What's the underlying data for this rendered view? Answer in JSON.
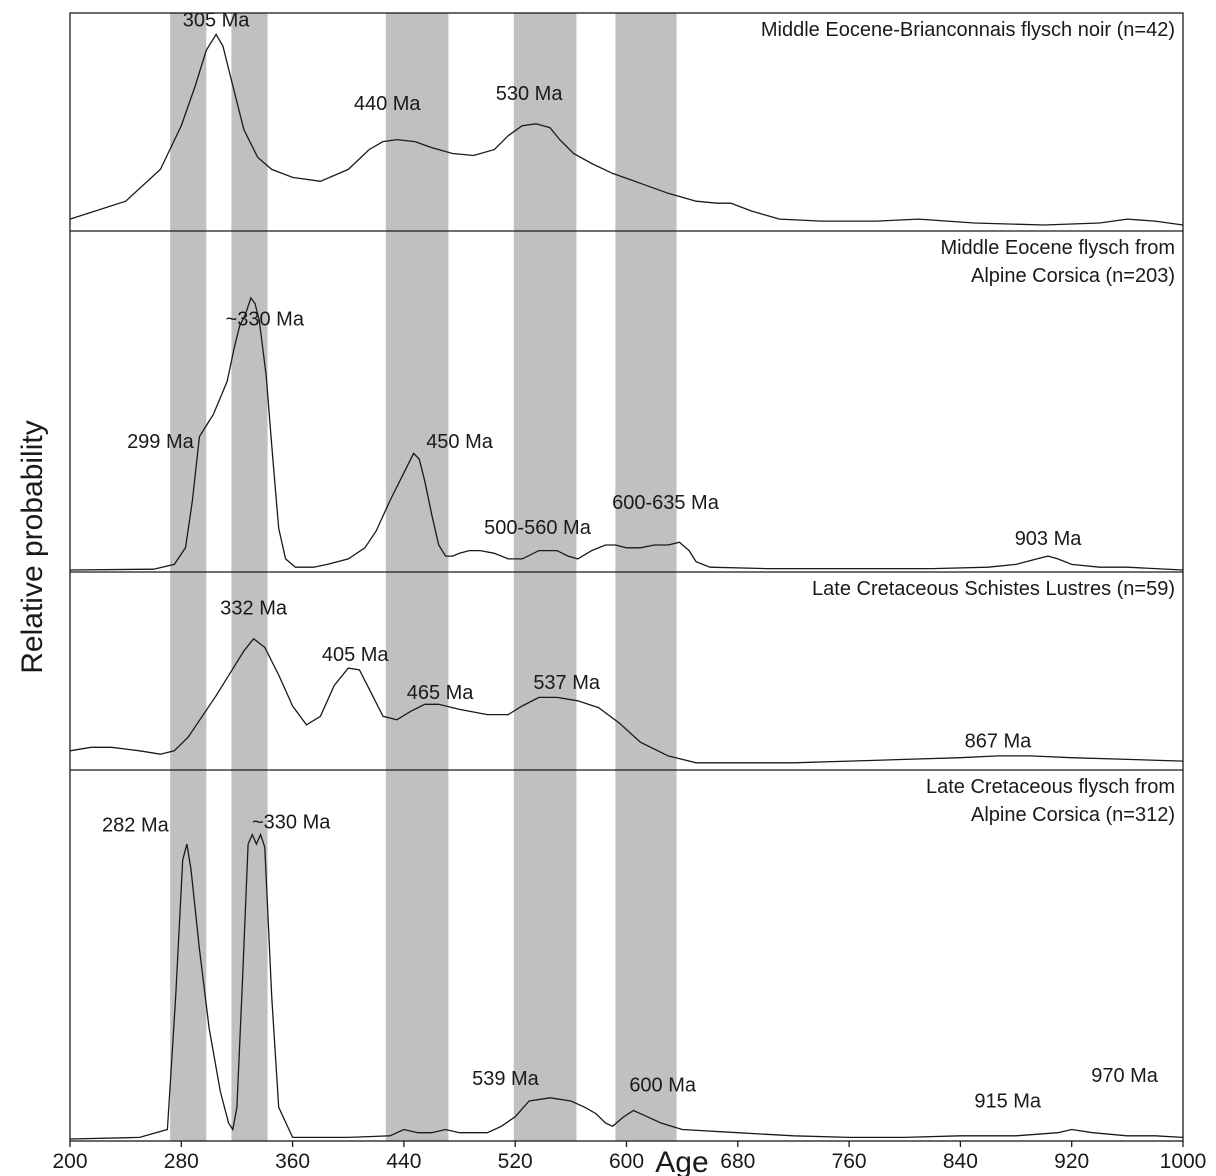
{
  "colors": {
    "band": "#c0c0c0",
    "line": "#1a1a1a",
    "background": "#ffffff"
  },
  "chart_data": {
    "type": "line",
    "xlabel": "Age",
    "ylabel": "Relative probability",
    "xlim": [
      200,
      1000
    ],
    "xticks": [
      "200",
      "280",
      "360",
      "440",
      "520",
      "600",
      "680",
      "760",
      "840",
      "920",
      "1000"
    ],
    "grid": false,
    "bands": [
      [
        272,
        298
      ],
      [
        316,
        342
      ],
      [
        427,
        472
      ],
      [
        519,
        564
      ],
      [
        592,
        636
      ]
    ],
    "panels": [
      {
        "title_lines": [
          "Middle Eocene-Brianconnais flysch noir (n=42)"
        ],
        "x": [
          200,
          240,
          265,
          280,
          290,
          298,
          305,
          310,
          316,
          325,
          335,
          345,
          360,
          380,
          400,
          415,
          425,
          435,
          448,
          460,
          475,
          490,
          505,
          515,
          525,
          535,
          545,
          552,
          562,
          575,
          590,
          610,
          630,
          650,
          665,
          675,
          690,
          710,
          740,
          780,
          810,
          850,
          900,
          940,
          960,
          980,
          1000
        ],
        "y": [
          0.05,
          0.14,
          0.3,
          0.52,
          0.72,
          0.9,
          0.98,
          0.92,
          0.75,
          0.5,
          0.36,
          0.3,
          0.26,
          0.24,
          0.3,
          0.4,
          0.44,
          0.45,
          0.44,
          0.41,
          0.38,
          0.37,
          0.4,
          0.47,
          0.52,
          0.53,
          0.51,
          0.45,
          0.38,
          0.33,
          0.28,
          0.23,
          0.18,
          0.14,
          0.13,
          0.13,
          0.09,
          0.05,
          0.04,
          0.04,
          0.05,
          0.03,
          0.02,
          0.03,
          0.05,
          0.04,
          0.02
        ],
        "peaks": [
          {
            "text": "305 Ma",
            "x": 305,
            "y": 1.02
          },
          {
            "text": "440 Ma",
            "x": 428,
            "y": 0.6
          },
          {
            "text": "530 Ma",
            "x": 530,
            "y": 0.65
          }
        ]
      },
      {
        "title_lines": [
          "Middle Eocene flysch from",
          "Alpine Corsica  (n=203)"
        ],
        "x": [
          200,
          260,
          275,
          283,
          288,
          293,
          298,
          303,
          308,
          313,
          318,
          322,
          326,
          330,
          333,
          336,
          341,
          345,
          350,
          355,
          362,
          375,
          385,
          400,
          412,
          420,
          430,
          440,
          447,
          451,
          455,
          460,
          465,
          470,
          475,
          480,
          487,
          495,
          505,
          515,
          525,
          537,
          550,
          558,
          565,
          575,
          585,
          592,
          600,
          610,
          620,
          630,
          638,
          645,
          650,
          660,
          700,
          760,
          820,
          860,
          880,
          895,
          903,
          910,
          920,
          940,
          960,
          980,
          1000
        ],
        "y": [
          0,
          0.003,
          0.02,
          0.08,
          0.25,
          0.48,
          0.52,
          0.56,
          0.62,
          0.68,
          0.8,
          0.88,
          0.92,
          0.98,
          0.96,
          0.9,
          0.7,
          0.45,
          0.15,
          0.04,
          0.01,
          0.01,
          0.02,
          0.04,
          0.08,
          0.14,
          0.25,
          0.35,
          0.42,
          0.4,
          0.32,
          0.2,
          0.09,
          0.05,
          0.05,
          0.06,
          0.07,
          0.07,
          0.06,
          0.04,
          0.04,
          0.07,
          0.07,
          0.05,
          0.04,
          0.07,
          0.09,
          0.09,
          0.08,
          0.08,
          0.09,
          0.09,
          0.1,
          0.07,
          0.03,
          0.01,
          0.005,
          0.005,
          0.005,
          0.01,
          0.02,
          0.04,
          0.05,
          0.04,
          0.02,
          0.01,
          0.01,
          0.005,
          0
        ],
        "peaks": [
          {
            "text": "~330 Ma",
            "x": 340,
            "y": 0.88
          },
          {
            "text": "299 Ma",
            "x": 265,
            "y": 0.44
          },
          {
            "text": "450 Ma",
            "x": 480,
            "y": 0.44
          },
          {
            "text": "500-560 Ma",
            "x": 536,
            "y": 0.13
          },
          {
            "text": "600-635 Ma",
            "x": 628,
            "y": 0.22
          },
          {
            "text": "903 Ma",
            "x": 903,
            "y": 0.09
          }
        ]
      },
      {
        "title_lines": [
          "Late Cretaceous Schistes Lustres (n=59)"
        ],
        "x": [
          200,
          215,
          230,
          250,
          265,
          275,
          285,
          295,
          305,
          315,
          325,
          332,
          340,
          350,
          360,
          370,
          380,
          390,
          400,
          408,
          415,
          425,
          435,
          445,
          455,
          465,
          480,
          500,
          515,
          525,
          537,
          550,
          565,
          580,
          595,
          610,
          630,
          650,
          680,
          720,
          760,
          800,
          840,
          867,
          890,
          920,
          960,
          1000
        ],
        "y": [
          0.1,
          0.12,
          0.12,
          0.1,
          0.08,
          0.1,
          0.18,
          0.3,
          0.42,
          0.55,
          0.68,
          0.75,
          0.7,
          0.54,
          0.36,
          0.25,
          0.3,
          0.48,
          0.58,
          0.57,
          0.46,
          0.3,
          0.28,
          0.33,
          0.37,
          0.37,
          0.34,
          0.31,
          0.31,
          0.36,
          0.41,
          0.41,
          0.39,
          0.35,
          0.26,
          0.15,
          0.07,
          0.03,
          0.03,
          0.03,
          0.04,
          0.05,
          0.06,
          0.07,
          0.07,
          0.06,
          0.05,
          0.04
        ],
        "peaks": [
          {
            "text": "332 Ma",
            "x": 332,
            "y": 0.89
          },
          {
            "text": "405 Ma",
            "x": 405,
            "y": 0.62
          },
          {
            "text": "465 Ma",
            "x": 466,
            "y": 0.4
          },
          {
            "text": "537 Ma",
            "x": 557,
            "y": 0.46
          },
          {
            "text": "867 Ma",
            "x": 867,
            "y": 0.12
          }
        ]
      },
      {
        "title_lines": [
          "Late Cretaceous flysch from",
          "Alpine Corsica (n=312)"
        ],
        "x": [
          200,
          250,
          270,
          276,
          281,
          284,
          287,
          293,
          300,
          308,
          314,
          317,
          320,
          324,
          328,
          331,
          334,
          337,
          340,
          345,
          350,
          360,
          400,
          430,
          440,
          450,
          460,
          470,
          480,
          490,
          500,
          510,
          520,
          530,
          545,
          560,
          570,
          578,
          585,
          590,
          598,
          605,
          615,
          625,
          640,
          680,
          720,
          760,
          800,
          840,
          880,
          910,
          920,
          935,
          960,
          980,
          1000
        ],
        "y": [
          0,
          0.005,
          0.03,
          0.45,
          0.88,
          0.93,
          0.85,
          0.6,
          0.35,
          0.15,
          0.05,
          0.03,
          0.1,
          0.5,
          0.93,
          0.96,
          0.93,
          0.96,
          0.92,
          0.45,
          0.1,
          0.005,
          0.005,
          0.01,
          0.03,
          0.02,
          0.02,
          0.03,
          0.02,
          0.02,
          0.02,
          0.04,
          0.07,
          0.12,
          0.13,
          0.12,
          0.1,
          0.08,
          0.05,
          0.04,
          0.07,
          0.09,
          0.07,
          0.05,
          0.03,
          0.02,
          0.01,
          0.005,
          0.005,
          0.01,
          0.01,
          0.02,
          0.03,
          0.02,
          0.01,
          0.01,
          0.005
        ],
        "peaks": [
          {
            "text": "282 Ma",
            "x": 247,
            "y": 0.97
          },
          {
            "text": "~330 Ma",
            "x": 359,
            "y": 0.98
          },
          {
            "text": "539 Ma",
            "x": 513,
            "y": 0.17
          },
          {
            "text": "600 Ma",
            "x": 626,
            "y": 0.15
          },
          {
            "text": "915 Ma",
            "x": 874,
            "y": 0.1
          },
          {
            "text": "970 Ma",
            "x": 958,
            "y": 0.18
          }
        ]
      }
    ]
  }
}
